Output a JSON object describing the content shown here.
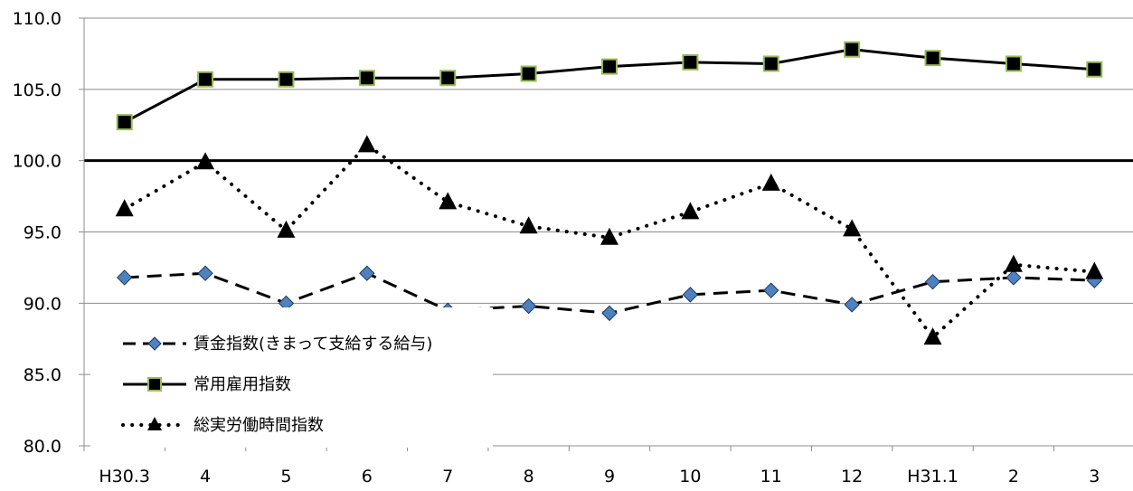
{
  "chart_data": {
    "type": "line",
    "categories": [
      "H30.3",
      "4",
      "5",
      "6",
      "7",
      "8",
      "9",
      "10",
      "11",
      "12",
      "H31.1",
      "2",
      "3"
    ],
    "ylim": [
      80.0,
      110.0
    ],
    "yticks": [
      "80.0",
      "85.0",
      "90.0",
      "95.0",
      "100.0",
      "105.0",
      "110.0"
    ],
    "reference_line": 100.0,
    "grid": "horizontal",
    "legend_position": "bottom-left",
    "series": [
      {
        "name": "賃金指数(きまって支給する給与)",
        "style": "dashed",
        "marker": "diamond",
        "color": "#000000",
        "marker_fill": "#4F81BD",
        "values": [
          91.8,
          92.1,
          90.0,
          92.1,
          89.5,
          89.8,
          89.3,
          90.6,
          90.9,
          89.9,
          91.5,
          91.8,
          91.6
        ]
      },
      {
        "name": "常用雇用指数",
        "style": "solid",
        "marker": "square",
        "color": "#000000",
        "marker_fill": "#000000",
        "marker_stroke": "#9BBB59",
        "values": [
          102.7,
          105.7,
          105.7,
          105.8,
          105.8,
          106.1,
          106.6,
          106.9,
          106.8,
          107.8,
          107.2,
          106.8,
          106.4
        ]
      },
      {
        "name": "総実労働時間指数",
        "style": "dotted",
        "marker": "triangle",
        "color": "#000000",
        "marker_fill": "#000000",
        "values": [
          96.6,
          99.9,
          95.1,
          101.1,
          97.1,
          95.4,
          94.6,
          96.4,
          98.4,
          95.2,
          87.6,
          92.7,
          92.2
        ]
      }
    ]
  }
}
